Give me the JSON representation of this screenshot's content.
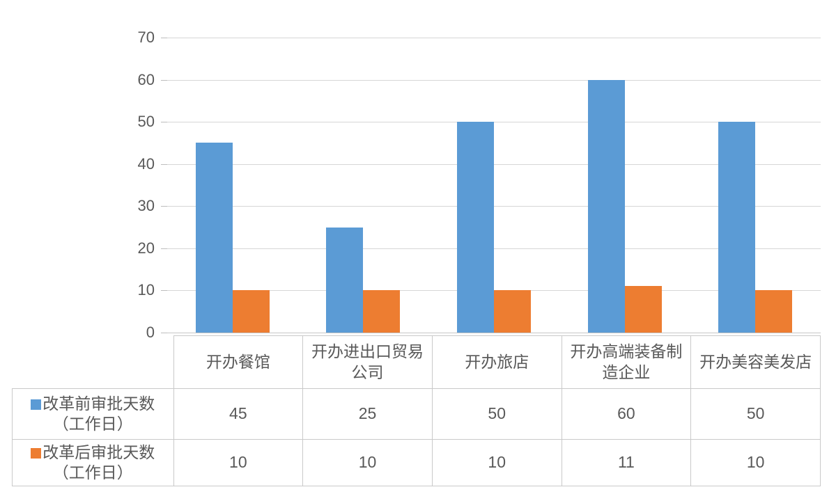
{
  "chart_data": {
    "type": "bar",
    "title": "",
    "xlabel": "",
    "ylabel": "",
    "categories": [
      "开办餐馆",
      "开办进出口贸易公司",
      "开办旅店",
      "开办高端装备制造企业",
      "开办美容美发店"
    ],
    "series": [
      {
        "name": "改革前审批天数（工作日）",
        "values": [
          45,
          25,
          50,
          60,
          50
        ],
        "color": "#5b9bd5"
      },
      {
        "name": "改革后审批天数（工作日）",
        "values": [
          10,
          10,
          10,
          11,
          10
        ],
        "color": "#ed7d31"
      }
    ],
    "ylim": [
      0,
      70
    ],
    "yticks": [
      0,
      10,
      20,
      30,
      40,
      50,
      60,
      70
    ],
    "ytick_labels": [
      "0",
      "10",
      "20",
      "30",
      "40",
      "50",
      "60",
      "70"
    ],
    "grid": true,
    "legend_position": "data-table-left-column"
  },
  "data_table": {
    "legend_rows": [
      {
        "marker": "square-icon",
        "color": "#5b9bd5",
        "label_line1": "改革前审批天数",
        "label_line2": "（工作日）",
        "cells": [
          "45",
          "25",
          "50",
          "60",
          "50"
        ]
      },
      {
        "marker": "square-icon",
        "color": "#ed7d31",
        "label_line1": "改革后审批天数",
        "label_line2": "（工作日）",
        "cells": [
          "10",
          "10",
          "10",
          "11",
          "10"
        ]
      }
    ]
  },
  "colors": {
    "series_before": "#5b9bd5",
    "series_after": "#ed7d31",
    "gridline": "#d6d6d6",
    "table_border": "#c9c9c9",
    "text": "#595959"
  }
}
